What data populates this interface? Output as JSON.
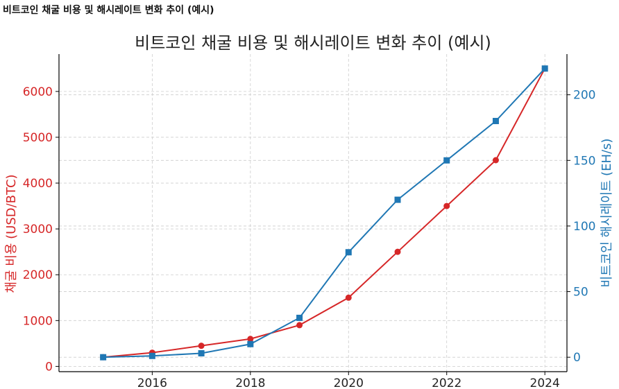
{
  "page_heading": "비트코인 채굴 비용 및 해시레이트 변화 추이 (예시)",
  "chart_data": {
    "type": "line",
    "title": "비트코인 채굴 비용 및 해시레이트 변화 추이 (예시)",
    "x": [
      2015,
      2016,
      2017,
      2018,
      2019,
      2020,
      2021,
      2022,
      2023,
      2024
    ],
    "xlim": [
      2014.1,
      2024.45
    ],
    "x_ticks": [
      2016,
      2018,
      2020,
      2022,
      2024
    ],
    "grid": true,
    "series": [
      {
        "name": "채굴 비용 (USD/BTC)",
        "axis": "left",
        "color": "#d62728",
        "marker": "circle",
        "values": [
          200,
          300,
          450,
          600,
          900,
          1500,
          2500,
          3500,
          4500,
          6500
        ]
      },
      {
        "name": "비트코인 해시레이트 (EH/s)",
        "axis": "right",
        "color": "#1f77b4",
        "marker": "square",
        "values": [
          0,
          1,
          3,
          10,
          30,
          80,
          120,
          150,
          180,
          220
        ]
      }
    ],
    "y_left": {
      "label": "채굴 비용 (USD/BTC)",
      "range": [
        -115,
        6815
      ],
      "ticks": [
        0,
        1000,
        2000,
        3000,
        4000,
        5000,
        6000
      ],
      "color": "#d62728"
    },
    "y_right": {
      "label": "비트코인 해시레이트 (EH/s)",
      "range": [
        -11,
        231
      ],
      "ticks": [
        0,
        50,
        100,
        150,
        200
      ],
      "color": "#1f77b4"
    }
  }
}
